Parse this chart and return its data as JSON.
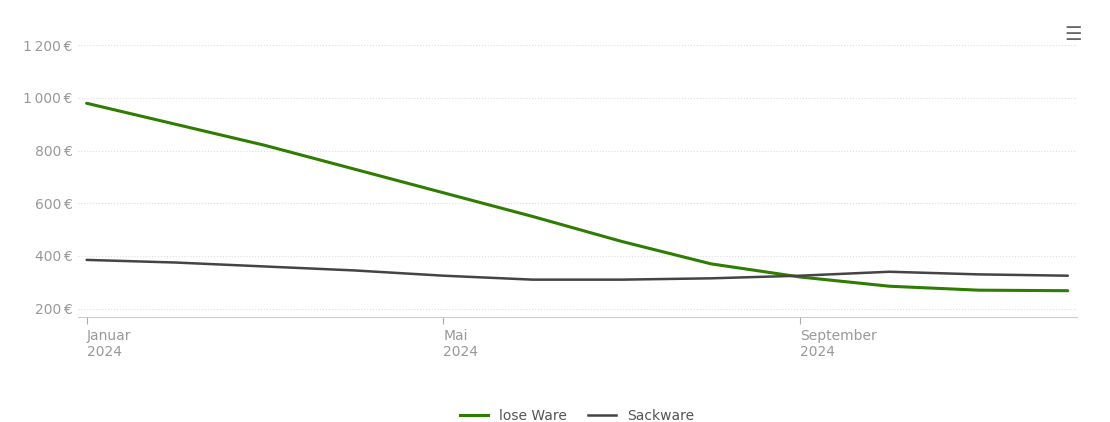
{
  "lose_ware_x": [
    0,
    1,
    2,
    3,
    4,
    5,
    6,
    7,
    8,
    9,
    10,
    11
  ],
  "lose_ware_y": [
    980,
    900,
    820,
    730,
    640,
    550,
    455,
    370,
    320,
    285,
    270,
    268
  ],
  "sack_ware_x": [
    0,
    1,
    2,
    3,
    4,
    5,
    6,
    7,
    8,
    9,
    10,
    11
  ],
  "sack_ware_y": [
    385,
    375,
    360,
    345,
    325,
    310,
    310,
    315,
    325,
    340,
    330,
    325
  ],
  "month_labels": [
    "Januar\n2024",
    "Mai\n2024",
    "September\n2024"
  ],
  "month_ticks": [
    0,
    4,
    8
  ],
  "yticks": [
    200,
    400,
    600,
    800,
    1000,
    1200
  ],
  "ylim": [
    170,
    1260
  ],
  "xlim": [
    -0.1,
    11.1
  ],
  "lose_ware_color": "#2e7d00",
  "sack_ware_color": "#444444",
  "legend_lose": "lose Ware",
  "legend_sack": "Sackware",
  "grid_color": "#dddddd",
  "bg_color": "#ffffff",
  "tick_color": "#999999",
  "hamburger_color": "#666666"
}
